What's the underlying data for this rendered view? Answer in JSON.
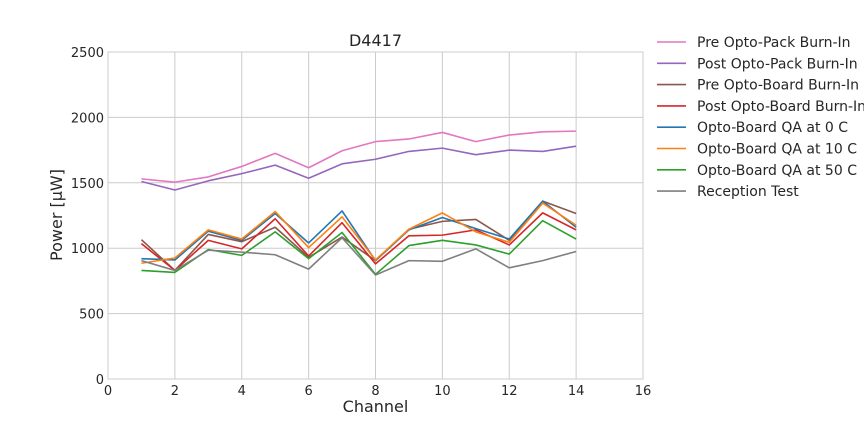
{
  "chart_data": {
    "type": "line",
    "title": "D4417",
    "xlabel": "Channel",
    "ylabel": "Power [μW]",
    "xlim": [
      0,
      16
    ],
    "ylim": [
      0,
      2500
    ],
    "xticks": [
      "0",
      "2",
      "4",
      "6",
      "8",
      "10",
      "12",
      "14",
      "16"
    ],
    "yticks": [
      "0",
      "500",
      "1000",
      "1500",
      "2000",
      "2500"
    ],
    "grid": true,
    "legend_position": "outside-right",
    "x": [
      1,
      2,
      3,
      4,
      5,
      6,
      7,
      8,
      9,
      10,
      11,
      12,
      13,
      14
    ],
    "series": [
      {
        "name": "Pre Opto-Pack Burn-In",
        "color": "#e377c2",
        "values": [
          1530,
          1505,
          1545,
          1625,
          1725,
          1615,
          1745,
          1815,
          1835,
          1885,
          1815,
          1865,
          1890,
          1895
        ]
      },
      {
        "name": "Post Opto-Pack Burn-In",
        "color": "#9467bd",
        "values": [
          1510,
          1445,
          1515,
          1570,
          1635,
          1535,
          1645,
          1680,
          1740,
          1765,
          1715,
          1750,
          1740,
          1780
        ]
      },
      {
        "name": "Pre Opto-Board Burn-In",
        "color": "#8c564b",
        "values": [
          1065,
          830,
          1105,
          1050,
          1160,
          930,
          1085,
          905,
          1145,
          1205,
          1220,
          1060,
          1360,
          1265
        ]
      },
      {
        "name": "Post Opto-Board Burn-In",
        "color": "#d62728",
        "values": [
          1035,
          830,
          1060,
          995,
          1225,
          940,
          1195,
          880,
          1095,
          1100,
          1140,
          1025,
          1270,
          1140
        ]
      },
      {
        "name": "Opto-Board QA at 0 C",
        "color": "#1f77b4",
        "values": [
          920,
          910,
          1130,
          1060,
          1265,
          1040,
          1285,
          905,
          1140,
          1235,
          1150,
          1070,
          1360,
          1160
        ]
      },
      {
        "name": "Opto-Board QA at 10 C",
        "color": "#ff7f0e",
        "values": [
          885,
          925,
          1140,
          1070,
          1280,
          1005,
          1240,
          910,
          1145,
          1270,
          1125,
          1045,
          1345,
          1175
        ]
      },
      {
        "name": "Opto-Board QA at 50 C",
        "color": "#2ca02c",
        "values": [
          830,
          815,
          990,
          945,
          1125,
          920,
          1120,
          800,
          1020,
          1060,
          1025,
          955,
          1210,
          1070
        ]
      },
      {
        "name": "Reception Test",
        "color": "#7f7f7f",
        "values": [
          905,
          830,
          985,
          970,
          950,
          840,
          1080,
          795,
          905,
          900,
          995,
          850,
          905,
          975
        ]
      }
    ]
  }
}
